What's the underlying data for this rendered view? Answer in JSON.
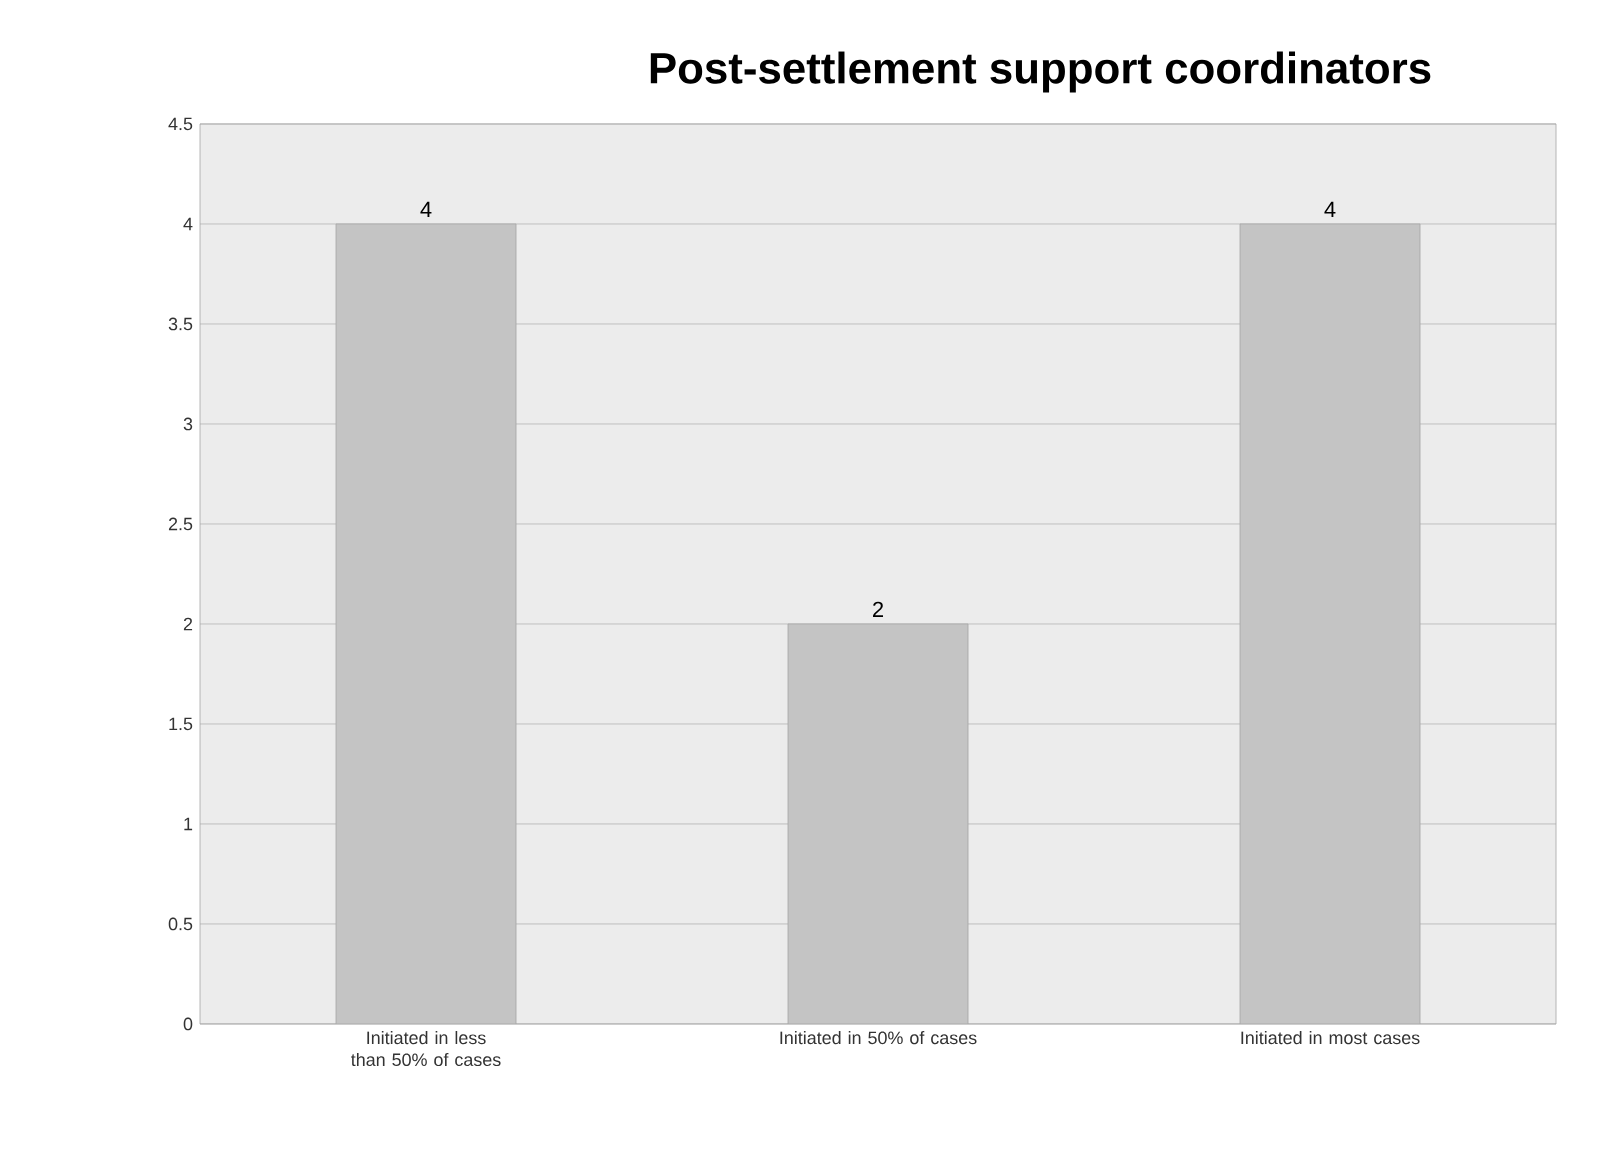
{
  "chart_data": {
    "type": "bar",
    "title": "Post-settlement support coordinators",
    "categories": [
      "Initiated in less than 50% of cases",
      "Initiated in 50% of cases",
      "Initiated in most cases"
    ],
    "values": [
      4,
      2,
      4
    ],
    "color": "#c4c4c4",
    "ylim": [
      0,
      4.5
    ],
    "yticks": [
      0,
      0.5,
      1,
      1.5,
      2,
      2.5,
      3,
      3.5,
      4,
      4.5
    ],
    "grid": "y",
    "data_labels": true
  }
}
